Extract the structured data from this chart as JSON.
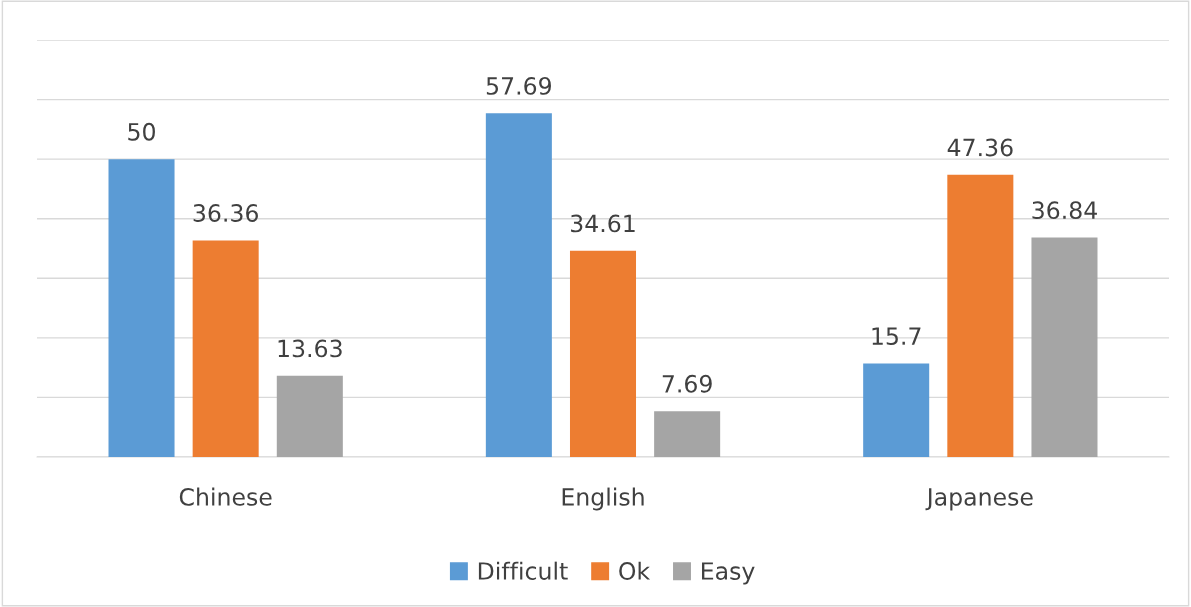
{
  "chart_data": {
    "type": "bar",
    "categories": [
      "Chinese",
      "English",
      "Japanese"
    ],
    "series": [
      {
        "name": "Difficult",
        "color": "#5b9bd5",
        "values": [
          50,
          57.69,
          15.7
        ]
      },
      {
        "name": "Ok",
        "color": "#ed7d31",
        "values": [
          36.36,
          34.61,
          47.36
        ]
      },
      {
        "name": "Easy",
        "color": "#a5a5a5",
        "values": [
          13.63,
          7.69,
          36.84
        ]
      }
    ],
    "ylim": [
      0,
      70
    ],
    "yticks": [
      {
        "value": 0,
        "label": null
      },
      {
        "value": 10,
        "label": null
      },
      {
        "value": 20,
        "label": null
      },
      {
        "value": 30,
        "label": null
      },
      {
        "value": 40,
        "label": null
      },
      {
        "value": 50,
        "label": null
      },
      {
        "value": 60,
        "label": null
      },
      {
        "value": 70,
        "label": null
      }
    ],
    "tick_labels": "x",
    "grid": "y",
    "data_labels": true,
    "legend": "bottom"
  }
}
